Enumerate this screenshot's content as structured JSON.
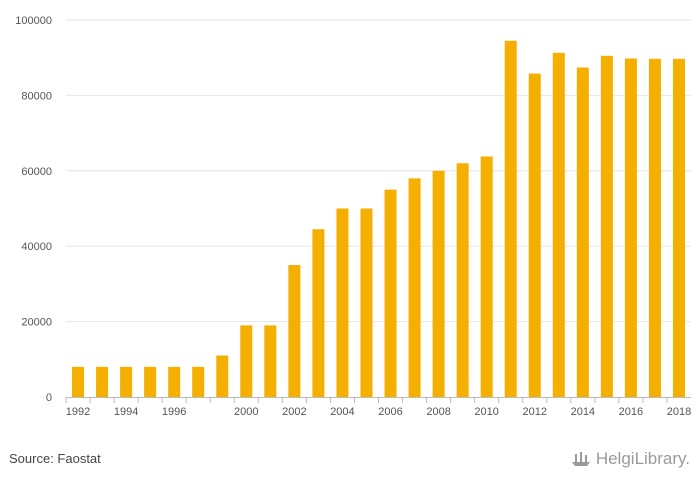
{
  "chart_data": {
    "type": "bar",
    "title": "",
    "xlabel": "",
    "ylabel": "",
    "categories": [
      "1992",
      "1993",
      "1994",
      "1995",
      "1996",
      "1997",
      "1998",
      "2000",
      "2001",
      "2002",
      "2003",
      "2004",
      "2005",
      "2006",
      "2007",
      "2008",
      "2009",
      "2010",
      "2011",
      "2012",
      "2013",
      "2014",
      "2015",
      "2016",
      "2017",
      "2018"
    ],
    "values": [
      8000,
      8000,
      8000,
      8000,
      8000,
      8000,
      11000,
      19000,
      19000,
      35000,
      44500,
      50000,
      50000,
      55000,
      58000,
      60000,
      62000,
      63800,
      94500,
      85800,
      91300,
      87400,
      90500,
      89800,
      89700,
      89700
    ],
    "x_tick_labels": [
      "1992",
      "1994",
      "1996",
      "2000",
      "2002",
      "2004",
      "2006",
      "2008",
      "2010",
      "2012",
      "2014",
      "2016",
      "2018"
    ],
    "y_ticks": [
      0,
      20000,
      40000,
      60000,
      80000,
      100000
    ],
    "ylim": [
      0,
      100000
    ],
    "grid": true,
    "bar_color": "#F5AF00"
  },
  "footer": {
    "source": "Source: Faostat",
    "brand": "HelgiLibrary."
  }
}
